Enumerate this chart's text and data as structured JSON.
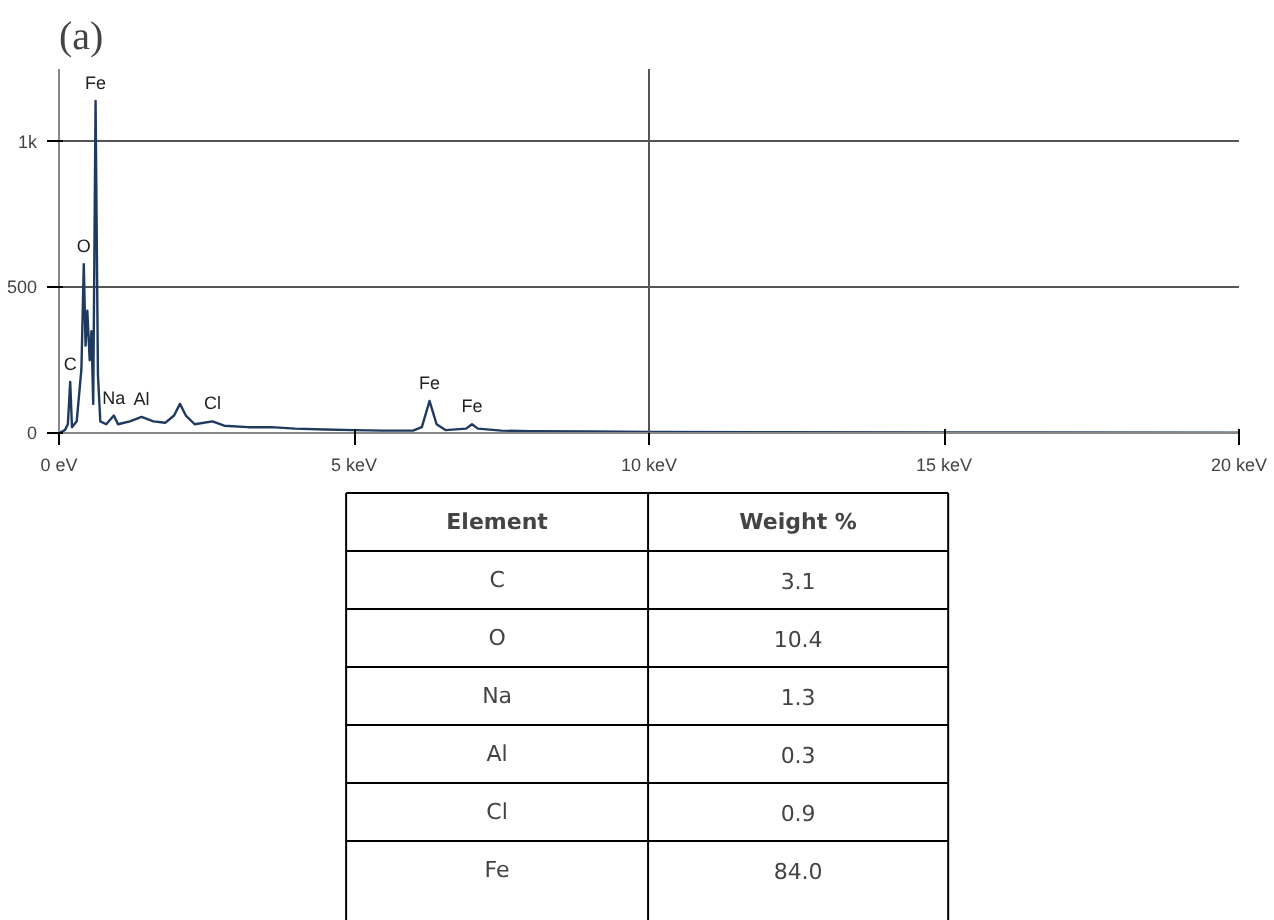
{
  "chart_data": [
    {
      "type": "line",
      "title": "(a)",
      "x": [
        0.0,
        0.1,
        0.15,
        0.19,
        0.22,
        0.3,
        0.38,
        0.42,
        0.45,
        0.48,
        0.52,
        0.55,
        0.58,
        0.62,
        0.66,
        0.7,
        0.8,
        0.93,
        1.0,
        1.2,
        1.4,
        1.6,
        1.8,
        1.95,
        2.05,
        2.15,
        2.3,
        2.6,
        2.8,
        3.2,
        3.6,
        4.0,
        4.5,
        5.0,
        5.5,
        6.0,
        6.15,
        6.28,
        6.4,
        6.55,
        6.9,
        7.0,
        7.1,
        7.5,
        8.0,
        9.0,
        10.0,
        12.0,
        15.0,
        20.0
      ],
      "series": [
        {
          "color": "#1f3a5f",
          "values": [
            0,
            10,
            30,
            175,
            20,
            40,
            220,
            580,
            300,
            420,
            250,
            350,
            100,
            1140,
            200,
            40,
            30,
            60,
            30,
            40,
            55,
            40,
            35,
            60,
            100,
            60,
            30,
            40,
            25,
            20,
            20,
            15,
            12,
            10,
            8,
            8,
            20,
            110,
            30,
            10,
            15,
            30,
            15,
            8,
            6,
            5,
            4,
            3,
            2,
            1
          ]
        }
      ],
      "xlim": [
        0,
        20
      ],
      "ylim": [
        0,
        1250
      ],
      "xticks": [
        {
          "value": 0,
          "label": "0 eV"
        },
        {
          "value": 5,
          "label": "5 keV"
        },
        {
          "value": 10,
          "label": "10 keV"
        },
        {
          "value": 15,
          "label": "15 keV"
        },
        {
          "value": 20,
          "label": "20 keV"
        }
      ],
      "yticks": [
        0,
        500,
        {
          "value": 1000,
          "label": "1k"
        }
      ],
      "grid": "y",
      "marker": "none",
      "line_style": "solid",
      "ref_lines": [
        {
          "axis": "x",
          "value": 10,
          "color": "#555555"
        }
      ],
      "annotations": [
        {
          "text": "C",
          "x": 0.19,
          "y": 175
        },
        {
          "text": "O",
          "x": 0.42,
          "y": 580
        },
        {
          "text": "Fe",
          "x": 0.62,
          "y": 1140
        },
        {
          "text": "Na",
          "x": 0.93,
          "y": 60
        },
        {
          "text": "Al",
          "x": 1.4,
          "y": 55
        },
        {
          "text": "Cl",
          "x": 2.6,
          "y": 40
        },
        {
          "text": "Fe",
          "x": 6.28,
          "y": 110
        },
        {
          "text": "Fe",
          "x": 7.0,
          "y": 30
        }
      ]
    },
    {
      "type": "other",
      "xlabel": "Element",
      "ylabel": "Weight %",
      "categories": [
        "C",
        "O",
        "Na",
        "Al",
        "Cl",
        "Fe"
      ],
      "values": [
        3.1,
        10.4,
        1.3,
        0.3,
        0.9,
        84.0
      ],
      "value_labels": [
        "3.1",
        "10.4",
        "1.3",
        "0.3",
        "0.9",
        "84.0"
      ]
    }
  ]
}
